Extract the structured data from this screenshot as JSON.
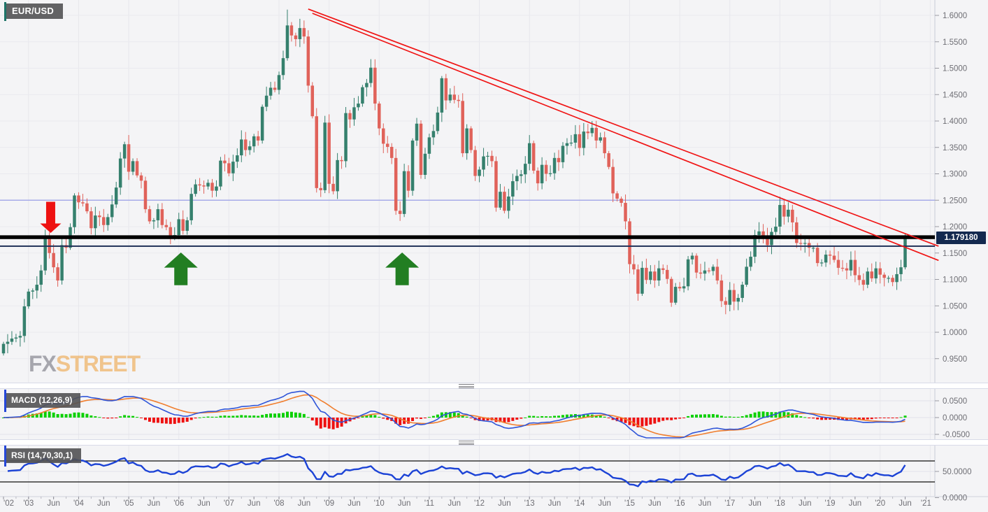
{
  "chart": {
    "symbol": "EUR/USD",
    "current_price": "1.179180",
    "watermark": {
      "part1": "FX",
      "part2": "STREET"
    },
    "indicators": {
      "macd_label": "MACD (12,26,9)",
      "rsi_label": "RSI (14,70,30,1)"
    }
  },
  "colors": {
    "background": "#f4f4f6",
    "grid": "#e7e7ec",
    "candle_up": "#35806D",
    "candle_down": "#E0625A",
    "macd_line": "#2f55d8",
    "macd_signal": "#f07e2e",
    "hist_up": "#0bd000",
    "hist_down": "#ee1010",
    "rsi_line": "#1c43d6",
    "trendline": "#f01515",
    "support_black": "#000000",
    "support_navy": "#23345a",
    "resistance_blue": "#a6abe8",
    "arrow_down": "#ee1111",
    "arrow_up": "#227e22",
    "axis_text": "#6e6e74",
    "badge_bg": "#13294f",
    "label_accent_symbol": "#1e7468",
    "label_accent_indicator": "#2547d8"
  },
  "chart_data": {
    "type": "candlestick",
    "title": "EUR/USD monthly with MACD and RSI",
    "timeframe_start": "2002-07",
    "timeframe_end": "2020-07",
    "last_close": 1.17918,
    "price_axis_ticks": [
      "1.6000",
      "1.5500",
      "1.5000",
      "1.4500",
      "1.4000",
      "1.3500",
      "1.3000",
      "1.2500",
      "1.2000",
      "1.1500",
      "1.1000",
      "1.0500",
      "1.0000",
      "0.9500"
    ],
    "macd_axis_ticks": [
      "0.0500",
      "0.0000",
      "-0.0500"
    ],
    "rsi_axis_ticks": [
      "50.0000",
      "0.0000"
    ],
    "x_labels": [
      [
        "'02",
        0
      ],
      [
        "'03",
        6
      ],
      [
        "Jun",
        12
      ],
      [
        "'04",
        18
      ],
      [
        "Jun",
        24
      ],
      [
        "'05",
        30
      ],
      [
        "Jun",
        36
      ],
      [
        "'06",
        42
      ],
      [
        "Jun",
        48
      ],
      [
        "'07",
        54
      ],
      [
        "Jun",
        60
      ],
      [
        "'08",
        66
      ],
      [
        "Jun",
        72
      ],
      [
        "'09",
        78
      ],
      [
        "Jun",
        84
      ],
      [
        "'10",
        90
      ],
      [
        "Jun",
        96
      ],
      [
        "'11",
        102
      ],
      [
        "Jun",
        108
      ],
      [
        "'12",
        114
      ],
      [
        "Jun",
        120
      ],
      [
        "'13",
        126
      ],
      [
        "Jun",
        132
      ],
      [
        "'14",
        138
      ],
      [
        "Jun",
        144
      ],
      [
        "'15",
        150
      ],
      [
        "Jun",
        156
      ],
      [
        "'16",
        162
      ],
      [
        "Jun",
        168
      ],
      [
        "'17",
        174
      ],
      [
        "Jun",
        180
      ],
      [
        "'18",
        186
      ],
      [
        "Jun",
        192
      ],
      [
        "'19",
        198
      ],
      [
        "Jun",
        204
      ],
      [
        "'20",
        210
      ],
      [
        "Jun",
        216
      ],
      [
        "'21",
        221
      ]
    ],
    "monthly_closes": [
      0.978,
      0.982,
      0.988,
      0.99,
      0.993,
      1.049,
      1.077,
      1.079,
      1.09,
      1.117,
      1.177,
      1.15,
      1.123,
      1.098,
      1.165,
      1.16,
      1.199,
      1.259,
      1.246,
      1.244,
      1.229,
      1.197,
      1.221,
      1.218,
      1.203,
      1.218,
      1.242,
      1.274,
      1.329,
      1.356,
      1.304,
      1.324,
      1.297,
      1.287,
      1.233,
      1.21,
      1.212,
      1.233,
      1.203,
      1.199,
      1.179,
      1.184,
      1.214,
      1.192,
      1.212,
      1.262,
      1.28,
      1.278,
      1.276,
      1.283,
      1.268,
      1.276,
      1.325,
      1.32,
      1.301,
      1.323,
      1.335,
      1.365,
      1.345,
      1.352,
      1.371,
      1.363,
      1.427,
      1.448,
      1.463,
      1.459,
      1.487,
      1.519,
      1.581,
      1.562,
      1.555,
      1.576,
      1.56,
      1.467,
      1.409,
      1.273,
      1.269,
      1.397,
      1.281,
      1.267,
      1.326,
      1.324,
      1.415,
      1.403,
      1.426,
      1.433,
      1.464,
      1.472,
      1.501,
      1.433,
      1.386,
      1.357,
      1.351,
      1.33,
      1.23,
      1.224,
      1.305,
      1.268,
      1.363,
      1.395,
      1.298,
      1.338,
      1.369,
      1.381,
      1.416,
      1.481,
      1.439,
      1.45,
      1.44,
      1.438,
      1.339,
      1.386,
      1.345,
      1.296,
      1.308,
      1.333,
      1.334,
      1.324,
      1.236,
      1.266,
      1.23,
      1.257,
      1.286,
      1.296,
      1.299,
      1.319,
      1.358,
      1.306,
      1.282,
      1.317,
      1.3,
      1.301,
      1.33,
      1.322,
      1.353,
      1.358,
      1.359,
      1.375,
      1.349,
      1.38,
      1.377,
      1.387,
      1.363,
      1.369,
      1.339,
      1.313,
      1.263,
      1.253,
      1.245,
      1.21,
      1.129,
      1.119,
      1.073,
      1.122,
      1.099,
      1.115,
      1.098,
      1.121,
      1.118,
      1.101,
      1.056,
      1.086,
      1.083,
      1.087,
      1.138,
      1.145,
      1.113,
      1.111,
      1.117,
      1.116,
      1.124,
      1.098,
      1.059,
      1.052,
      1.08,
      1.058,
      1.065,
      1.09,
      1.124,
      1.143,
      1.184,
      1.191,
      1.181,
      1.165,
      1.19,
      1.2,
      1.241,
      1.219,
      1.232,
      1.208,
      1.169,
      1.168,
      1.169,
      1.16,
      1.16,
      1.131,
      1.132,
      1.147,
      1.145,
      1.137,
      1.122,
      1.121,
      1.117,
      1.137,
      1.108,
      1.099,
      1.09,
      1.115,
      1.102,
      1.121,
      1.109,
      1.103,
      1.103,
      1.095,
      1.11,
      1.123,
      1.17918
    ],
    "annotations": {
      "resistance_line_price": 1.25,
      "support_line_black_price": 1.18,
      "support_line_navy_price": 1.163,
      "trendlines": [
        {
          "x1_index": 73,
          "y1_price": 1.612,
          "x2_index": 223,
          "y2_price": 1.163
        },
        {
          "x1_index": 74,
          "y1_price": 1.604,
          "x2_index": 223,
          "y2_price": 1.136
        }
      ],
      "down_arrow": {
        "index": 11.3,
        "tip_price": 1.188,
        "tail_price": 1.247
      },
      "up_arrows": [
        {
          "index": 42.5,
          "tip_price": 1.151,
          "tail_price": 1.089
        },
        {
          "index": 95.5,
          "tip_price": 1.151,
          "tail_price": 1.089
        }
      ]
    },
    "panels": {
      "main": {
        "ylim": [
          0.93,
          1.63
        ],
        "grid": true
      },
      "macd": {
        "ylim": [
          -0.075,
          0.085
        ],
        "levels": [
          0.05,
          0,
          -0.05
        ]
      },
      "rsi": {
        "ylim": [
          0,
          100
        ],
        "levels": [
          70,
          30
        ]
      }
    }
  }
}
